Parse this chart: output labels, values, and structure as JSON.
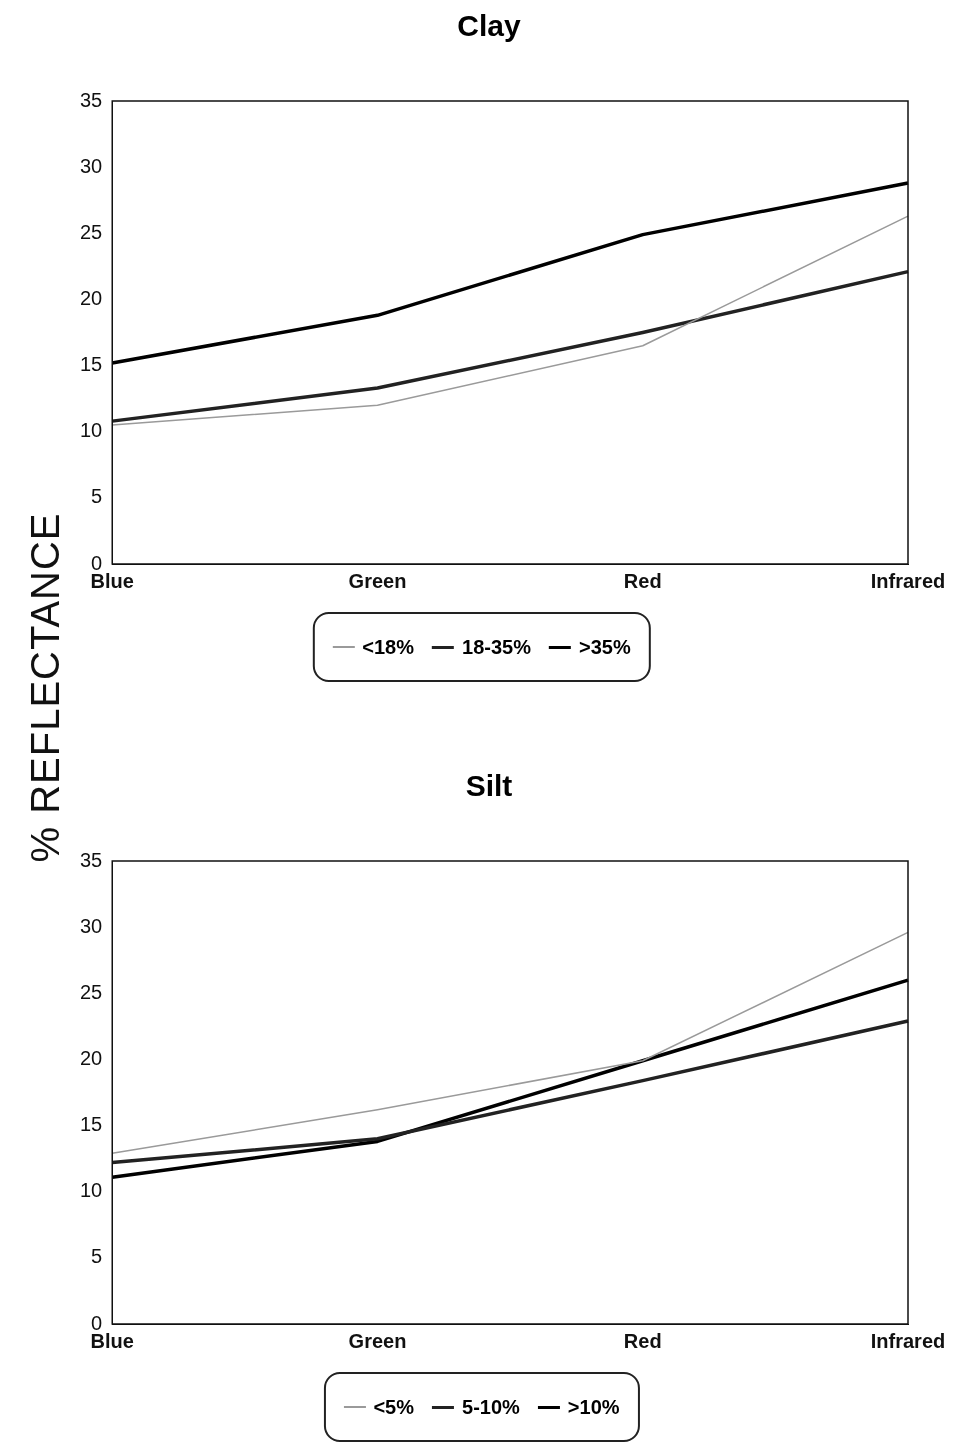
{
  "chart_data": [
    {
      "type": "line",
      "title": "Clay",
      "ylabel": "% REFLECTANCE",
      "categories": [
        "Blue",
        "Green",
        "Red",
        "Infrared"
      ],
      "series": [
        {
          "name": "<18%",
          "color": "#9a9a9a",
          "values": [
            10.5,
            12.0,
            16.5,
            26.3
          ]
        },
        {
          "name": "18-35%",
          "color": "#222222",
          "values": [
            10.8,
            13.3,
            17.5,
            22.1
          ]
        },
        {
          "name": ">35%",
          "color": "#000000",
          "values": [
            15.2,
            18.8,
            24.9,
            28.8
          ]
        }
      ],
      "ylim": [
        0,
        35
      ],
      "yticks": [
        0,
        5,
        10,
        15,
        20,
        25,
        30,
        35
      ],
      "grid": false,
      "legend": "bottom",
      "marker": "none",
      "line_style": "solid"
    },
    {
      "type": "line",
      "title": "Silt",
      "categories": [
        "Blue",
        "Green",
        "Red",
        "Infrared"
      ],
      "series": [
        {
          "name": "<5%",
          "color": "#9a9a9a",
          "values": [
            12.9,
            16.2,
            19.9,
            29.6
          ]
        },
        {
          "name": "5-10%",
          "color": "#222222",
          "values": [
            12.2,
            14.0,
            18.4,
            22.9
          ]
        },
        {
          "name": ">10%",
          "color": "#000000",
          "values": [
            11.1,
            13.8,
            19.9,
            26.0
          ]
        }
      ],
      "ylim": [
        0,
        35
      ],
      "yticks": [
        0,
        5,
        10,
        15,
        20,
        25,
        30,
        35
      ],
      "grid": false,
      "legend": "bottom",
      "marker": "none",
      "line_style": "solid"
    }
  ]
}
